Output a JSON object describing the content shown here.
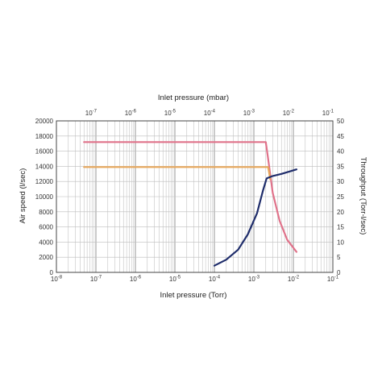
{
  "chart_data": {
    "type": "line",
    "bottom_axis": {
      "label": "Inlet pressure (Torr)",
      "scale": "log",
      "range": [
        1e-08,
        0.1
      ],
      "ticks": [
        {
          "base": "10",
          "exp": "-8",
          "value": 1e-08
        },
        {
          "base": "10",
          "exp": "-7",
          "value": 1e-07
        },
        {
          "base": "10",
          "exp": "-6",
          "value": 1e-06
        },
        {
          "base": "10",
          "exp": "-5",
          "value": 1e-05
        },
        {
          "base": "10",
          "exp": "-4",
          "value": 0.0001
        },
        {
          "base": "10",
          "exp": "-3",
          "value": 0.001
        },
        {
          "base": "10",
          "exp": "-2",
          "value": 0.01
        },
        {
          "base": "10",
          "exp": "-1",
          "value": 0.1
        }
      ]
    },
    "top_axis": {
      "label": "Inlet pressure (mbar)",
      "scale": "log",
      "ticks": [
        {
          "base": "10",
          "exp": "-7",
          "torr": 7.5e-08
        },
        {
          "base": "10",
          "exp": "-6",
          "torr": 7.5e-07
        },
        {
          "base": "10",
          "exp": "-5",
          "torr": 7.5e-06
        },
        {
          "base": "10",
          "exp": "-4",
          "torr": 7.5e-05
        },
        {
          "base": "10",
          "exp": "-3",
          "torr": 0.00075
        },
        {
          "base": "10",
          "exp": "-2",
          "torr": 0.0075
        },
        {
          "base": "10",
          "exp": "-1",
          "torr": 0.075
        }
      ]
    },
    "left_axis": {
      "label": "Air speed (l/sec)",
      "range": [
        0,
        20000
      ],
      "ticks": [
        "0",
        "2000",
        "4000",
        "6000",
        "8000",
        "10000",
        "12000",
        "14000",
        "16000",
        "18000",
        "20000"
      ]
    },
    "right_axis": {
      "label": "Throughput (Torr-l/sec)",
      "range": [
        0,
        50
      ],
      "ticks": [
        "0",
        "5",
        "10",
        "15",
        "20",
        "25",
        "30",
        "35",
        "40",
        "45",
        "50"
      ]
    },
    "grid": true,
    "series": [
      {
        "axis": "left",
        "color": "#e0728a",
        "points": [
          [
            5e-08,
            17200
          ],
          [
            0.002,
            17200
          ],
          [
            0.0023,
            15000
          ],
          [
            0.003,
            10500
          ],
          [
            0.0045,
            6800
          ],
          [
            0.007,
            4300
          ],
          [
            0.012,
            2700
          ]
        ]
      },
      {
        "axis": "left",
        "color": "#e8a85c",
        "points": [
          [
            5e-08,
            13900
          ],
          [
            0.0023,
            13900
          ],
          [
            0.0026,
            12300
          ]
        ]
      },
      {
        "axis": "right",
        "color": "#1f2d6b",
        "points": [
          [
            0.0001,
            2.2
          ],
          [
            0.0002,
            4.2
          ],
          [
            0.0004,
            7.5
          ],
          [
            0.0007,
            12.5
          ],
          [
            0.0012,
            19.5
          ],
          [
            0.0017,
            27
          ],
          [
            0.0021,
            31
          ],
          [
            0.003,
            31.8
          ],
          [
            0.005,
            32.5
          ],
          [
            0.008,
            33.3
          ],
          [
            0.012,
            34
          ]
        ]
      }
    ]
  }
}
